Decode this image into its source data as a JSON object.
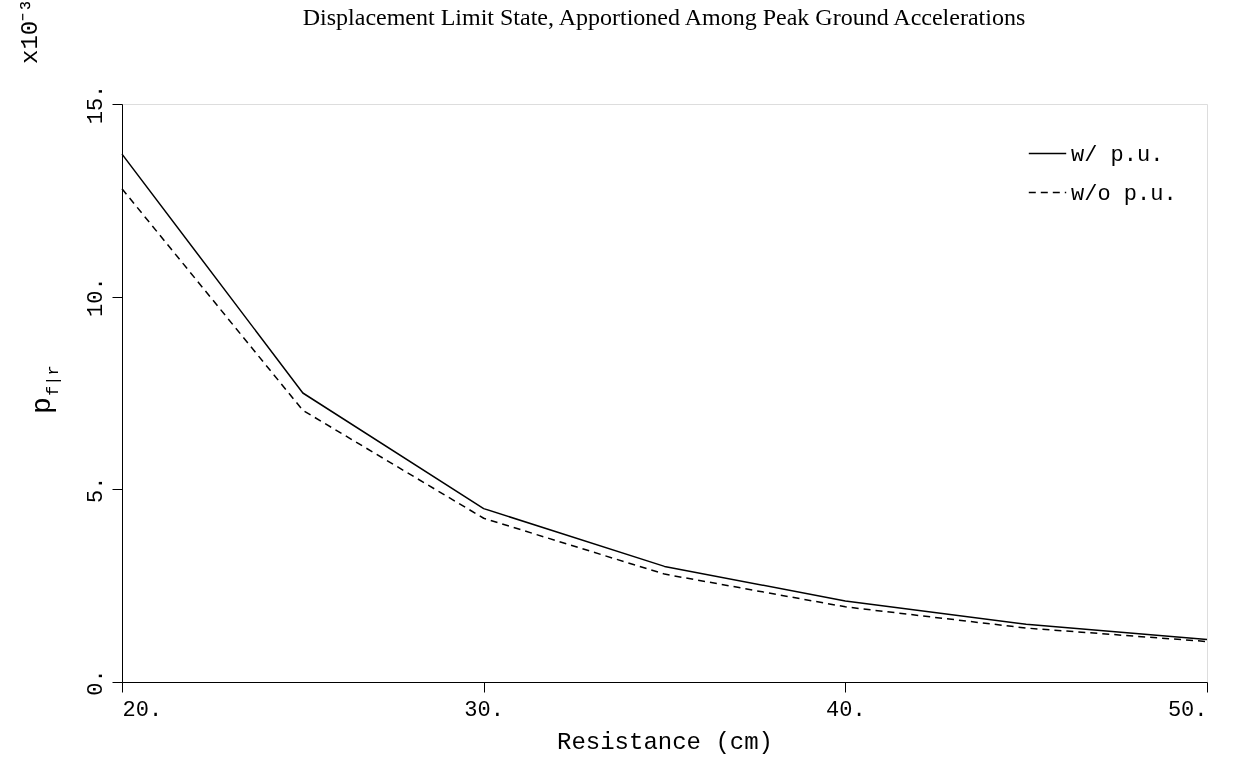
{
  "chart_data": {
    "type": "line",
    "title": "Displacement Limit State, Apportioned Among Peak Ground Accelerations",
    "xlabel": "Resistance (cm)",
    "ylabel": "p$_{f|r}$",
    "annotations": [
      "x10⁻³"
    ],
    "x": [
      20,
      25,
      30,
      35,
      40,
      45,
      50
    ],
    "series": [
      {
        "name": "w/  p.u.",
        "color": "#000000",
        "line_style": "solid",
        "values": [
          13.7,
          7.5,
          4.5,
          3.0,
          2.1,
          1.5,
          1.1
        ]
      },
      {
        "name": "w/o p.u.",
        "color": "#000000",
        "line_style": "dashed",
        "values": [
          12.8,
          7.05,
          4.25,
          2.8,
          1.95,
          1.4,
          1.05
        ]
      }
    ],
    "xlim": [
      20,
      50
    ],
    "ylim": [
      0,
      15
    ],
    "xticks": [
      {
        "value": 20,
        "label": "20."
      },
      {
        "value": 30,
        "label": "30."
      },
      {
        "value": 40,
        "label": "40."
      },
      {
        "value": 50,
        "label": "50."
      }
    ],
    "yticks": [
      {
        "value": 0,
        "label": "0."
      },
      {
        "value": 5,
        "label": "5."
      },
      {
        "value": 10,
        "label": "10."
      },
      {
        "value": 15,
        "label": "15."
      }
    ],
    "grid": false,
    "legend": "top right",
    "marker": "none"
  }
}
